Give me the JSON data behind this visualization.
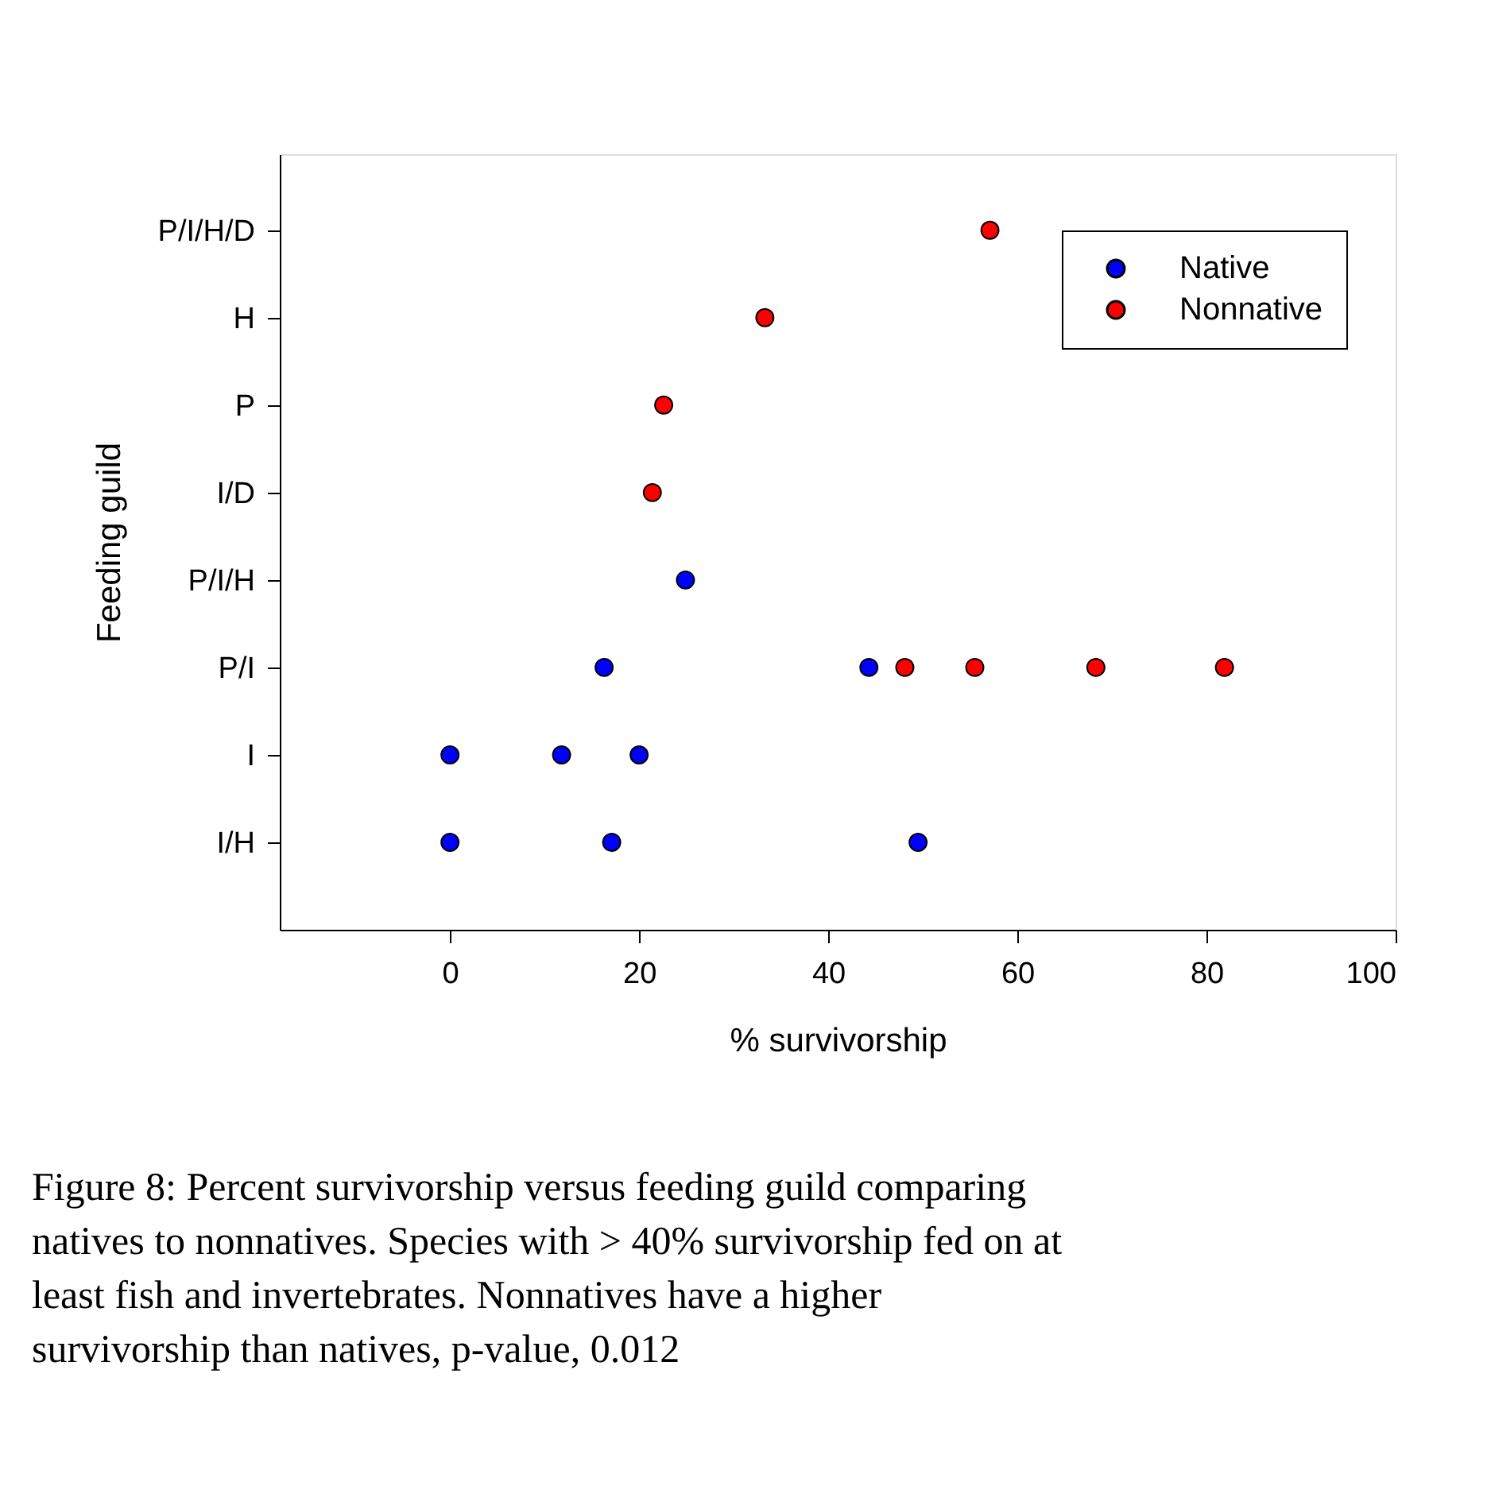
{
  "chart_data": {
    "type": "scatter",
    "orientation": "horizontal",
    "categories": [
      "P/I/H/D",
      "H",
      "P",
      "I/D",
      "P/I/H",
      "P/I",
      "I",
      "I/H"
    ],
    "xlabel": "% survivorship",
    "ylabel": "Feeding guild",
    "xlim": [
      -18,
      100
    ],
    "xticks": [
      0,
      20,
      40,
      60,
      80,
      100
    ],
    "series": [
      {
        "name": "Native",
        "color": "#0000ff",
        "values": [
          null,
          null,
          null,
          null,
          24.9,
          16.3,
          0,
          0
        ]
      },
      {
        "color": "#0000ff",
        "values": [
          null,
          null,
          null,
          null,
          null,
          44.3,
          11.8,
          17.1
        ]
      },
      {
        "color": "#0000ff",
        "values": [
          null,
          null,
          null,
          null,
          null,
          null,
          20,
          49.5
        ]
      },
      {
        "name": "Nonnative",
        "color": "#ff0000",
        "values": [
          57.1,
          33.3,
          22.6,
          21.4,
          null,
          48.1,
          null,
          null
        ]
      },
      {
        "color": "#ff0000",
        "values": [
          null,
          null,
          null,
          null,
          null,
          55.5,
          null,
          null
        ]
      },
      {
        "color": "#ff0000",
        "values": [
          null,
          null,
          null,
          null,
          null,
          68.3,
          null,
          null
        ]
      },
      {
        "color": "#ff0000",
        "values": [
          null,
          null,
          null,
          null,
          null,
          81.9,
          null,
          null
        ]
      }
    ],
    "marker": "circle",
    "legend": "top right",
    "grid": false,
    "annotations": [
      "Figure 8: Percent survivorship versus feeding guild comparing natives to nonnatives. Species with > 40% survivorship fed on at least fish and invertebrates. Nonnatives have a higher survivorship than natives, p-value, 0.012"
    ]
  }
}
